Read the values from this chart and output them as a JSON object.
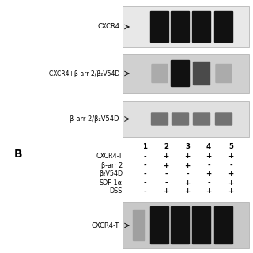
{
  "fig_bg": "#ffffff",
  "panel_bg1": "#e8e8e8",
  "panel_bg2": "#d0d0d0",
  "panel_bg3": "#e0e0e0",
  "panel_bg4": "#c8c8c8",
  "panel1_label": "CXCR4",
  "panel2_label": "CXCR4+β-arr 2/β₂V54D",
  "panel3_label": "β-arr 2/β₂V54D",
  "panel4_label": "CXCR4-T",
  "section_B_label": "B",
  "table_col_labels": [
    "1",
    "2",
    "3",
    "4",
    "5"
  ],
  "table_row_labels": [
    "CXCR4-T",
    "β-arr 2",
    "β₂V54D",
    "SDF-1α",
    "DSS"
  ],
  "table_values": [
    [
      "-",
      "+",
      "+",
      "+",
      "+"
    ],
    [
      "-",
      "+",
      "+",
      "-",
      "-"
    ],
    [
      "-",
      "-",
      "-",
      "+",
      "+"
    ],
    [
      "-",
      "-",
      "+",
      "-",
      "+"
    ],
    [
      "-",
      "+",
      "+",
      "+",
      "+"
    ]
  ],
  "band_color_dark": "#111111",
  "band_color_mid": "#666666",
  "band_color_light": "#999999",
  "arrow_color": "#111111",
  "font_size_label": 6.0,
  "font_size_label2": 5.5,
  "font_size_table": 5.8,
  "font_size_col": 6.2,
  "font_size_B": 10
}
